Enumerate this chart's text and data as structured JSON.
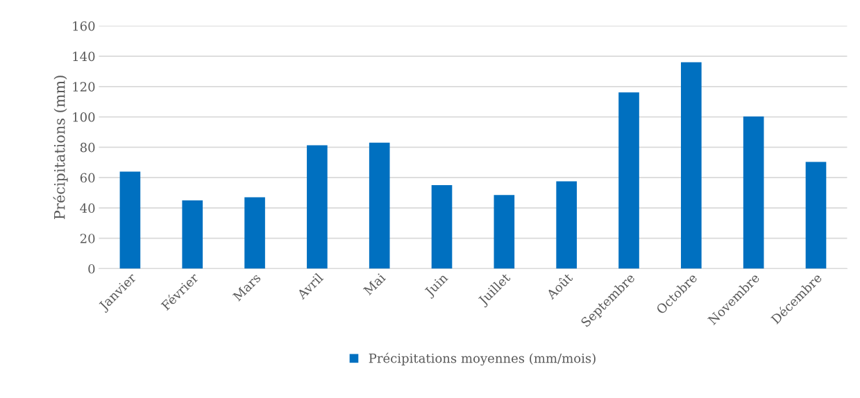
{
  "chart_data": {
    "type": "bar",
    "ylabel": "Précipitations (mm)",
    "categories": [
      "Janvier",
      "Février",
      "Mars",
      "Avril",
      "Mai",
      "Juin",
      "Juillet",
      "Août",
      "Septembre",
      "Octobre",
      "Novembre",
      "Décembre"
    ],
    "series": [
      {
        "name": "Précipitations moyennes (mm/mois)",
        "color": "#0070c0",
        "values": [
          64,
          45,
          47,
          81.3,
          83,
          55,
          48.5,
          57.6,
          116.2,
          136,
          100.3,
          70.3
        ]
      }
    ],
    "ylim": [
      0,
      160
    ],
    "yticks": [
      0,
      20,
      40,
      60,
      80,
      100,
      120,
      140,
      160
    ],
    "grid": "y",
    "legend": "bottom"
  }
}
